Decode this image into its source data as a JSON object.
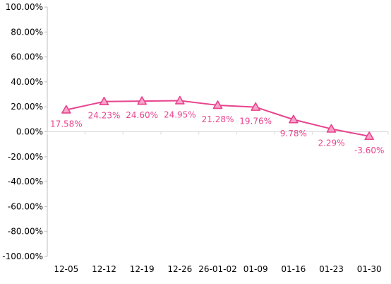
{
  "chart_data": {
    "type": "line",
    "categories": [
      "12-05",
      "12-12",
      "12-19",
      "12-26",
      "26-01-02",
      "01-09",
      "01-16",
      "01-23",
      "01-30"
    ],
    "series": [
      {
        "values": [
          17.58,
          24.23,
          24.6,
          24.95,
          21.28,
          19.76,
          9.78,
          2.29,
          -3.6
        ],
        "data_labels": [
          "17.58%",
          "24.23%",
          "24.60%",
          "24.95%",
          "21.28%",
          "19.76%",
          "9.78%",
          "2.29%",
          "-3.60%"
        ],
        "color": "#e8438f",
        "marker": "triangle",
        "marker_fill": "#f7a6c9"
      }
    ],
    "ylim": [
      -100,
      100
    ],
    "y_ticks": [
      100,
      80,
      60,
      40,
      20,
      0,
      -20,
      -40,
      -60,
      -80,
      -100
    ],
    "y_tick_labels": [
      "100.00%",
      "80.00%",
      "60.00%",
      "40.00%",
      "20.00%",
      "0.00%",
      "-20.00%",
      "-40.00%",
      "-60.00%",
      "-80.00%",
      "-100.00%"
    ],
    "grid": false,
    "legend": "none"
  }
}
